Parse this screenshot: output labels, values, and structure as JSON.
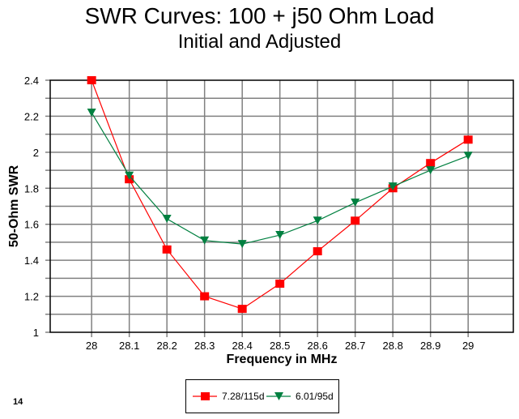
{
  "page_number": "14",
  "chart_data": {
    "type": "line",
    "title": "SWR Curves:  100 + j50 Ohm Load",
    "subtitle": "Initial and Adjusted",
    "xlabel": "Frequency in MHz",
    "ylabel": "50-Ohm SWR",
    "x": [
      28,
      28.1,
      28.2,
      28.3,
      28.4,
      28.5,
      28.6,
      28.7,
      28.8,
      28.9,
      29
    ],
    "x_tick_labels": [
      "28",
      "28.1",
      "28.2",
      "28.3",
      "28.4",
      "28.5",
      "28.6",
      "28.7",
      "28.8",
      "28.9",
      "29"
    ],
    "y_tick_labels": [
      "1",
      "1.2",
      "1.4",
      "1.6",
      "1.8",
      "2",
      "2.2",
      "2.4"
    ],
    "y_ticks": [
      1,
      1.2,
      1.4,
      1.6,
      1.8,
      2,
      2.2,
      2.4
    ],
    "y_minor_step": 0.1,
    "xlim": [
      27.89,
      29.12
    ],
    "ylim": [
      1,
      2.4
    ],
    "grid": true,
    "legend_position": "bottom-center",
    "series": [
      {
        "name": "7.28/115d",
        "color": "#ff0000",
        "marker": "square",
        "values": [
          2.4,
          1.85,
          1.46,
          1.2,
          1.13,
          1.27,
          1.45,
          1.62,
          1.8,
          1.94,
          2.07
        ]
      },
      {
        "name": "6.01/95d",
        "color": "#008040",
        "marker": "triangle-down",
        "values": [
          2.22,
          1.87,
          1.63,
          1.51,
          1.49,
          1.54,
          1.62,
          1.72,
          1.81,
          1.9,
          1.98
        ]
      }
    ]
  }
}
